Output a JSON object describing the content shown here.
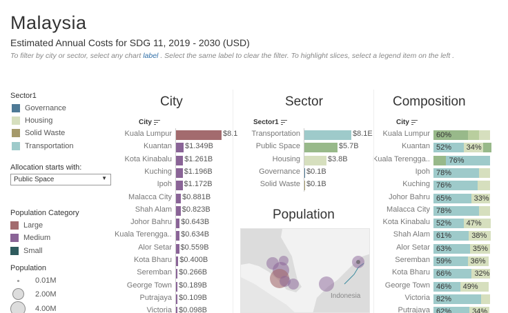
{
  "header": {
    "title": "Malaysia",
    "subtitle": "Estimated Annual Costs for SDG 11, 2019 - 2030 (USD)",
    "instructions_pre": "To filter by city or sector, select any chart",
    "instructions_label": "label",
    "instructions_post": ". Select the same label to clear the filter. To highlight slices, select a legend item on the left ."
  },
  "legend": {
    "sector_title": "Sector1",
    "sectors": [
      {
        "label": "Governance",
        "color": "#4e7a96"
      },
      {
        "label": "Housing",
        "color": "#d6dfbe"
      },
      {
        "label": "Solid Waste",
        "color": "#a59a6b"
      },
      {
        "label": "Transportation",
        "color": "#9ecaca"
      }
    ],
    "allocation_title": "Allocation starts with:",
    "allocation_value": "Public Space",
    "popcat_title": "Population Category",
    "popcats": [
      {
        "label": "Large",
        "color": "#a36b6e"
      },
      {
        "label": "Medium",
        "color": "#8a6497"
      },
      {
        "label": "Small",
        "color": "#2f5b5e"
      }
    ],
    "population_title": "Population",
    "population_sizes": [
      "0.01M",
      "2.00M",
      "4.00M"
    ]
  },
  "city": {
    "title": "City",
    "col_head": "City",
    "rows": [
      {
        "label": "Kuala Lumpur",
        "value": "$8.1",
        "amount": 8.1,
        "color": "#a36b6e"
      },
      {
        "label": "Kuantan",
        "value": "$1.349B",
        "amount": 1.349,
        "color": "#8a6497"
      },
      {
        "label": "Kota Kinabalu",
        "value": "$1.261B",
        "amount": 1.261,
        "color": "#8a6497"
      },
      {
        "label": "Kuching",
        "value": "$1.196B",
        "amount": 1.196,
        "color": "#8a6497"
      },
      {
        "label": "Ipoh",
        "value": "$1.172B",
        "amount": 1.172,
        "color": "#8a6497"
      },
      {
        "label": "Malacca City",
        "value": "$0.881B",
        "amount": 0.881,
        "color": "#8a6497"
      },
      {
        "label": "Shah Alam",
        "value": "$0.823B",
        "amount": 0.823,
        "color": "#8a6497"
      },
      {
        "label": "Johor Bahru",
        "value": "$0.643B",
        "amount": 0.643,
        "color": "#8a6497"
      },
      {
        "label": "Kuala Terengga..",
        "value": "$0.634B",
        "amount": 0.634,
        "color": "#8a6497"
      },
      {
        "label": "Alor Setar",
        "value": "$0.559B",
        "amount": 0.559,
        "color": "#8a6497"
      },
      {
        "label": "Kota Bharu",
        "value": "$0.400B",
        "amount": 0.4,
        "color": "#8a6497"
      },
      {
        "label": "Seremban",
        "value": "$0.266B",
        "amount": 0.266,
        "color": "#8a6497"
      },
      {
        "label": "George Town",
        "value": "$0.189B",
        "amount": 0.189,
        "color": "#8a6497"
      },
      {
        "label": "Putrajaya",
        "value": "$0.109B",
        "amount": 0.109,
        "color": "#8a6497"
      },
      {
        "label": "Victoria",
        "value": "$0.098B",
        "amount": 0.098,
        "color": "#8a6497"
      }
    ]
  },
  "sector": {
    "title": "Sector",
    "col_head": "Sector1",
    "rows": [
      {
        "label": "Transportation",
        "value": "$8.1E",
        "amount": 8.1,
        "color": "#9ecaca"
      },
      {
        "label": "Public Space",
        "value": "$5.7B",
        "amount": 5.7,
        "color": "#98b98a"
      },
      {
        "label": "Housing",
        "value": "$3.8B",
        "amount": 3.8,
        "color": "#d6dfbe"
      },
      {
        "label": "Governance",
        "value": "$0.1B",
        "amount": 0.1,
        "color": "#4e7a96"
      },
      {
        "label": "Solid Waste",
        "value": "$0.1B",
        "amount": 0.1,
        "color": "#a59a6b"
      }
    ]
  },
  "population": {
    "title": "Population",
    "map_label": "Indonesia"
  },
  "composition": {
    "title": "Composition",
    "col_head": "City",
    "rows": [
      {
        "label": "Kuala Lumpur",
        "segs": [
          {
            "pct": 60,
            "text": "60%",
            "color": "#98b98a"
          },
          {
            "pct": 18,
            "text": "",
            "color": "#b9ce9e"
          },
          {
            "pct": 20,
            "text": "",
            "color": "#d6dfbe"
          }
        ]
      },
      {
        "label": "Kuantan",
        "segs": [
          {
            "pct": 52,
            "text": "52%",
            "color": "#9ecaca"
          },
          {
            "pct": 34,
            "text": "34%",
            "color": "#d6dfbe"
          },
          {
            "pct": 14,
            "text": "",
            "color": "#98b98a"
          }
        ]
      },
      {
        "label": "Kuala Terengga..",
        "segs": [
          {
            "pct": 22,
            "text": "",
            "color": "#98b98a"
          },
          {
            "pct": 76,
            "text": "76%",
            "color": "#9ecaca"
          }
        ]
      },
      {
        "label": "Ipoh",
        "segs": [
          {
            "pct": 78,
            "text": "78%",
            "color": "#9ecaca"
          },
          {
            "pct": 20,
            "text": "",
            "color": "#d6dfbe"
          }
        ]
      },
      {
        "label": "Kuching",
        "segs": [
          {
            "pct": 76,
            "text": "76%",
            "color": "#9ecaca"
          },
          {
            "pct": 22,
            "text": "",
            "color": "#d6dfbe"
          }
        ]
      },
      {
        "label": "Johor Bahru",
        "segs": [
          {
            "pct": 65,
            "text": "65%",
            "color": "#9ecaca"
          },
          {
            "pct": 33,
            "text": "33%",
            "color": "#d6dfbe"
          }
        ]
      },
      {
        "label": "Malacca City",
        "segs": [
          {
            "pct": 78,
            "text": "78%",
            "color": "#9ecaca"
          },
          {
            "pct": 20,
            "text": "",
            "color": "#d6dfbe"
          }
        ]
      },
      {
        "label": "Kota Kinabalu",
        "segs": [
          {
            "pct": 52,
            "text": "52%",
            "color": "#9ecaca"
          },
          {
            "pct": 47,
            "text": "47%",
            "color": "#d6dfbe"
          }
        ]
      },
      {
        "label": "Shah Alam",
        "segs": [
          {
            "pct": 61,
            "text": "61%",
            "color": "#9ecaca"
          },
          {
            "pct": 38,
            "text": "38%",
            "color": "#d6dfbe"
          }
        ]
      },
      {
        "label": "Alor Setar",
        "segs": [
          {
            "pct": 63,
            "text": "63%",
            "color": "#9ecaca"
          },
          {
            "pct": 35,
            "text": "35%",
            "color": "#d6dfbe"
          }
        ]
      },
      {
        "label": "Seremban",
        "segs": [
          {
            "pct": 59,
            "text": "59%",
            "color": "#9ecaca"
          },
          {
            "pct": 36,
            "text": "36%",
            "color": "#d6dfbe"
          }
        ]
      },
      {
        "label": "Kota Bharu",
        "segs": [
          {
            "pct": 66,
            "text": "66%",
            "color": "#9ecaca"
          },
          {
            "pct": 32,
            "text": "32%",
            "color": "#d6dfbe"
          }
        ]
      },
      {
        "label": "George Town",
        "segs": [
          {
            "pct": 46,
            "text": "46%",
            "color": "#9ecaca"
          },
          {
            "pct": 49,
            "text": "49%",
            "color": "#d6dfbe"
          }
        ]
      },
      {
        "label": "Victoria",
        "segs": [
          {
            "pct": 82,
            "text": "82%",
            "color": "#9ecaca"
          },
          {
            "pct": 16,
            "text": "",
            "color": "#d6dfbe"
          }
        ]
      },
      {
        "label": "Putrajaya",
        "segs": [
          {
            "pct": 62,
            "text": "62%",
            "color": "#9ecaca"
          },
          {
            "pct": 34,
            "text": "34%",
            "color": "#d6dfbe"
          }
        ]
      }
    ]
  }
}
